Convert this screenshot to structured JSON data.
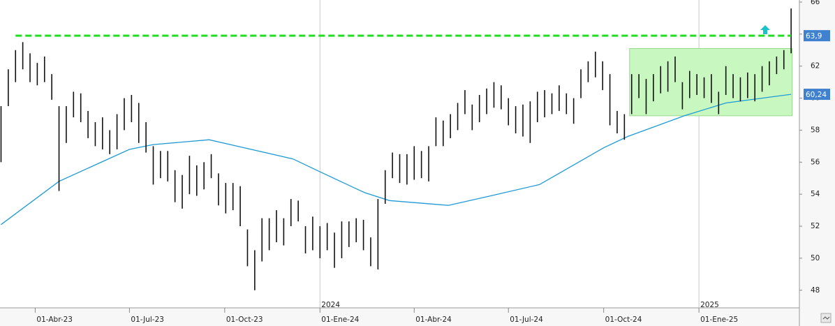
{
  "chart_data": {
    "type": "ohlc",
    "color": "#111111",
    "xlim": [
      "2023-02-26",
      "2025-04-08"
    ],
    "ylim": [
      46.9,
      66.13
    ],
    "yticks": [
      48,
      50,
      52,
      54,
      56,
      58,
      60,
      62,
      64,
      66
    ],
    "xticks": [
      {
        "value": "2023-04-01",
        "label": "01-Abr-23"
      },
      {
        "value": "2023-07-01",
        "label": "01-Jul-23"
      },
      {
        "value": "2023-10-01",
        "label": "01-Oct-23"
      },
      {
        "value": "2024-01-01",
        "label": "01-Ene-24"
      },
      {
        "value": "2024-04-01",
        "label": "01-Abr-24"
      },
      {
        "value": "2024-07-01",
        "label": "01-Jul-24"
      },
      {
        "value": "2024-10-01",
        "label": "01-Oct-24"
      },
      {
        "value": "2025-01-01",
        "label": "01-Ene-25"
      }
    ],
    "year_markers": [
      {
        "value": "2024-01-01",
        "label": "2024"
      },
      {
        "value": "2025-01-01",
        "label": "2025"
      }
    ],
    "x": [
      "2023-02-27",
      "2023-03-06",
      "2023-03-13",
      "2023-03-20",
      "2023-03-27",
      "2023-04-03",
      "2023-04-10",
      "2023-04-17",
      "2023-04-24",
      "2023-05-01",
      "2023-05-08",
      "2023-05-15",
      "2023-05-22",
      "2023-05-29",
      "2023-06-05",
      "2023-06-12",
      "2023-06-19",
      "2023-06-26",
      "2023-07-03",
      "2023-07-10",
      "2023-07-17",
      "2023-07-24",
      "2023-07-31",
      "2023-08-07",
      "2023-08-14",
      "2023-08-21",
      "2023-08-28",
      "2023-09-04",
      "2023-09-11",
      "2023-09-18",
      "2023-09-25",
      "2023-10-02",
      "2023-10-09",
      "2023-10-16",
      "2023-10-23",
      "2023-10-30",
      "2023-11-06",
      "2023-11-13",
      "2023-11-20",
      "2023-11-27",
      "2023-12-04",
      "2023-12-11",
      "2023-12-18",
      "2023-12-25",
      "2024-01-01",
      "2024-01-08",
      "2024-01-15",
      "2024-01-22",
      "2024-01-29",
      "2024-02-05",
      "2024-02-12",
      "2024-02-19",
      "2024-02-26",
      "2024-03-04",
      "2024-03-11",
      "2024-03-18",
      "2024-03-25",
      "2024-04-01",
      "2024-04-08",
      "2024-04-15",
      "2024-04-22",
      "2024-04-29",
      "2024-05-06",
      "2024-05-13",
      "2024-05-20",
      "2024-05-27",
      "2024-06-03",
      "2024-06-10",
      "2024-06-17",
      "2024-06-24",
      "2024-07-01",
      "2024-07-08",
      "2024-07-15",
      "2024-07-22",
      "2024-07-29",
      "2024-08-05",
      "2024-08-12",
      "2024-08-19",
      "2024-08-26",
      "2024-09-02",
      "2024-09-09",
      "2024-09-16",
      "2024-09-23",
      "2024-09-30",
      "2024-10-07",
      "2024-10-14",
      "2024-10-21",
      "2024-10-28",
      "2024-11-04",
      "2024-11-11",
      "2024-11-18",
      "2024-11-25",
      "2024-12-02",
      "2024-12-09",
      "2024-12-16",
      "2024-12-23",
      "2024-12-30",
      "2025-01-06",
      "2025-01-13",
      "2025-01-20",
      "2025-01-27",
      "2025-02-03",
      "2025-02-10",
      "2025-02-17",
      "2025-02-24",
      "2025-03-03",
      "2025-03-10",
      "2025-03-17",
      "2025-03-24",
      "2025-03-31"
    ],
    "high": [
      59.5,
      61.8,
      63,
      63.5,
      62.8,
      62.2,
      62.6,
      61.5,
      59.5,
      59.5,
      60.4,
      60.3,
      59.2,
      58.5,
      58.8,
      58,
      59,
      60,
      60.2,
      59.7,
      58.5,
      57,
      56.7,
      56.7,
      55.5,
      55.2,
      56.4,
      55.8,
      56,
      56.5,
      55.3,
      54.7,
      54.7,
      54.5,
      51.8,
      50.5,
      52.5,
      52.5,
      53,
      52.5,
      53.7,
      53.6,
      52,
      52.6,
      52,
      52.2,
      51.6,
      52.3,
      52.3,
      52.5,
      52.4,
      51.3,
      53.7,
      55.5,
      56.6,
      56.5,
      56.5,
      57,
      56.7,
      57,
      58.8,
      58.6,
      59,
      59.7,
      60.5,
      59.6,
      60.2,
      60.6,
      61,
      60.8,
      60,
      59.5,
      59.6,
      59.8,
      60.4,
      60.5,
      60.3,
      60.8,
      60.3,
      60,
      61.8,
      62.3,
      62.9,
      62.3,
      61.5,
      59.2,
      59,
      61.5,
      61.5,
      61.2,
      61.5,
      62,
      62.3,
      62.6,
      61,
      61.7,
      61.5,
      61.3,
      61.5,
      60.4,
      62,
      61.5,
      61.3,
      61.6,
      61.5,
      62,
      62.3,
      62.6,
      63,
      65.6
    ],
    "low": [
      56,
      59.5,
      61,
      61.8,
      61,
      60.8,
      61,
      59.9,
      54.2,
      57.2,
      58.8,
      58.5,
      57.5,
      57,
      56.8,
      56.5,
      56.8,
      58,
      58.5,
      57.2,
      56.6,
      54.6,
      55,
      54.8,
      53.5,
      53.1,
      54,
      53.9,
      54.3,
      55,
      53.3,
      52.8,
      53,
      52,
      49.5,
      48,
      49.8,
      50.5,
      51,
      50.8,
      52,
      52.3,
      50.3,
      50.5,
      50,
      50.5,
      49.4,
      50,
      50.7,
      51,
      50.5,
      49.5,
      49.3,
      53.4,
      55,
      54.7,
      54.6,
      54.9,
      55,
      54.8,
      57,
      57,
      57.5,
      58,
      59,
      58,
      58.5,
      59,
      59.4,
      59.3,
      58.3,
      57.8,
      57.6,
      57.2,
      58.5,
      58.8,
      59,
      59.2,
      59,
      58.4,
      60,
      61,
      61.3,
      60.5,
      58.3,
      57.8,
      57.4,
      59,
      60,
      59,
      59.8,
      60.3,
      60.4,
      61,
      59.3,
      60,
      60.2,
      60,
      59.7,
      59,
      60.2,
      60,
      59.8,
      60,
      59.8,
      60.4,
      60.8,
      61.5,
      61.8,
      62.8
    ],
    "moving_average": {
      "color": "#1f9ad6",
      "x": [
        "2023-02-27",
        "2023-04-24",
        "2023-07-01",
        "2023-07-24",
        "2023-09-16",
        "2023-10-20",
        "2023-12-06",
        "2024-01-01",
        "2024-02-13",
        "2024-03-08",
        "2024-05-04",
        "2024-06-14",
        "2024-07-31",
        "2024-10-01",
        "2024-10-24",
        "2024-12-18",
        "2025-01-27",
        "2025-03-31"
      ],
      "values": [
        52.1,
        54.8,
        56.8,
        57.1,
        57.4,
        56.9,
        56.2,
        55.4,
        54.1,
        53.6,
        53.3,
        53.9,
        54.6,
        56.9,
        57.6,
        58.9,
        59.7,
        60.24
      ],
      "last_value_label": "60,24"
    },
    "resistance": {
      "value": 63.9,
      "value_label": "63,9",
      "x": [
        "2023-03-13",
        "2025-03-31"
      ],
      "color": "#22dd22"
    },
    "zone": {
      "x": [
        "2024-10-26",
        "2025-04-01"
      ],
      "y": [
        58.9,
        63.1
      ],
      "color": "#c8f7c0"
    },
    "label_box_color": "#3f80cf"
  }
}
